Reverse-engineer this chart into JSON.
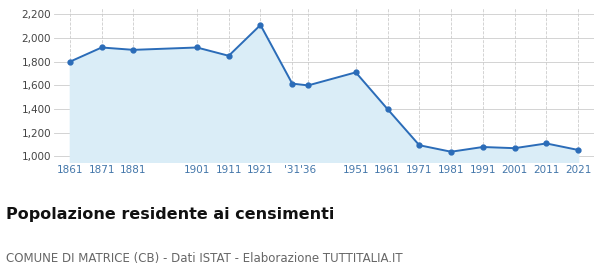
{
  "years": [
    1861,
    1871,
    1881,
    1901,
    1911,
    1921,
    1931,
    1936,
    1951,
    1961,
    1971,
    1981,
    1991,
    2001,
    2011,
    2021
  ],
  "population": [
    1800,
    1920,
    1900,
    1920,
    1850,
    2110,
    1615,
    1600,
    1710,
    1400,
    1095,
    1040,
    1080,
    1070,
    1110,
    1055
  ],
  "x_tick_years": [
    1861,
    1871,
    1881,
    1901,
    1911,
    1921,
    1931,
    1936,
    1951,
    1961,
    1971,
    1981,
    1991,
    2001,
    2011,
    2021
  ],
  "x_tick_labels": [
    "1861",
    "1871",
    "1881",
    "1901",
    "1911",
    "1921",
    "'31",
    "'36",
    "1951",
    "1961",
    "1971",
    "1981",
    "1991",
    "2001",
    "2011",
    "2021"
  ],
  "ylim": [
    950,
    2250
  ],
  "yticks": [
    1000,
    1200,
    1400,
    1600,
    1800,
    2000,
    2200
  ],
  "ytick_labels": [
    "1,000",
    "1,200",
    "1,400",
    "1,600",
    "1,800",
    "2,000",
    "2,200"
  ],
  "line_color": "#2b6cb8",
  "fill_color": "#daedf7",
  "marker_color": "#2b6cb8",
  "grid_color": "#cccccc",
  "background_color": "#ffffff",
  "title": "Popolazione residente ai censimenti",
  "subtitle": "COMUNE DI MATRICE (CB) - Dati ISTAT - Elaborazione TUTTITALIA.IT",
  "title_fontsize": 11.5,
  "subtitle_fontsize": 8.5,
  "tick_color": "#4477aa",
  "xlim_left": 1856,
  "xlim_right": 2026
}
